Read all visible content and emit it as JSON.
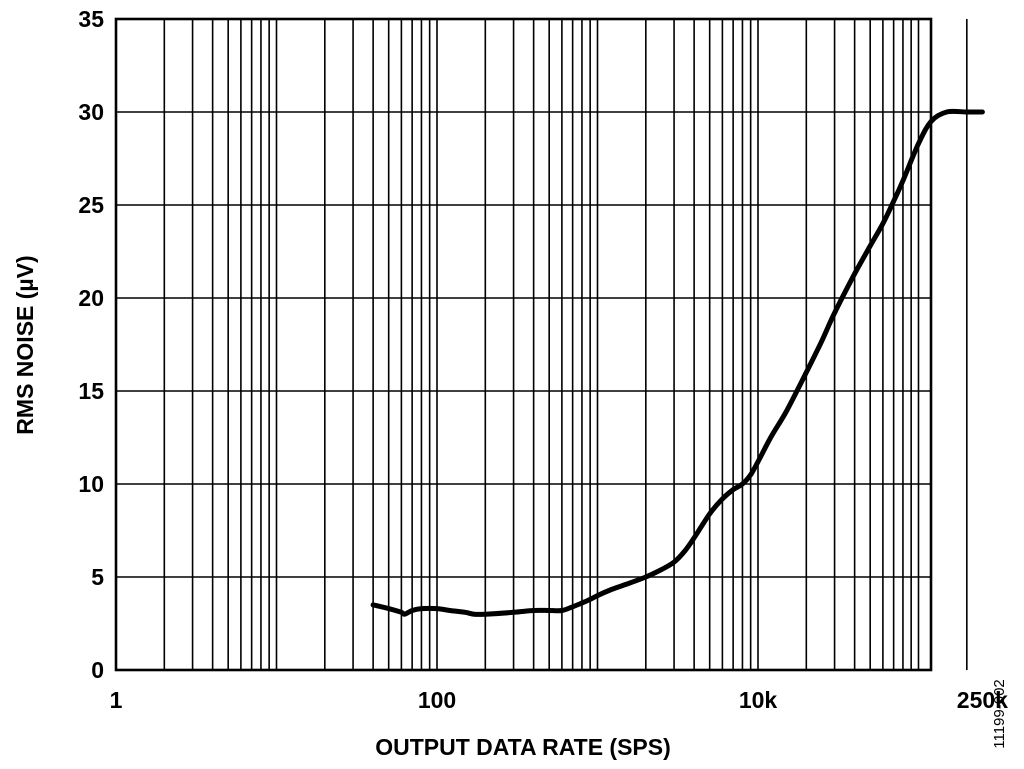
{
  "chart_data": {
    "type": "line",
    "title": "",
    "xlabel": "OUTPUT DATA RATE (SPS)",
    "ylabel": "RMS NOISE (µV)",
    "xscale": "log",
    "xlim": [
      1,
      250000
    ],
    "ylim": [
      0,
      35
    ],
    "grid": true,
    "x_ticks": [
      {
        "value": 1,
        "label": "1"
      },
      {
        "value": 100,
        "label": "100"
      },
      {
        "value": 10000,
        "label": "10k"
      },
      {
        "value": 250000,
        "label": "250k"
      }
    ],
    "y_ticks": [
      {
        "value": 0,
        "label": "0"
      },
      {
        "value": 5,
        "label": "5"
      },
      {
        "value": 10,
        "label": "10"
      },
      {
        "value": 15,
        "label": "15"
      },
      {
        "value": 20,
        "label": "20"
      },
      {
        "value": 25,
        "label": "25"
      },
      {
        "value": 30,
        "label": "30"
      },
      {
        "value": 35,
        "label": "35"
      }
    ],
    "series": [
      {
        "x": [
          40,
          50,
          60,
          63,
          70,
          80,
          100,
          120,
          150,
          170,
          200,
          300,
          400,
          500,
          600,
          700,
          800,
          900,
          1000,
          1200,
          1500,
          2000,
          2500,
          3000,
          3500,
          4000,
          5000,
          6000,
          7000,
          8000,
          9000,
          10000,
          12000,
          15000,
          20000,
          25000,
          30000,
          40000,
          50000,
          60000,
          70000,
          80000,
          100000,
          120000,
          150000,
          200000,
          250000
        ],
        "y": [
          3.5,
          3.3,
          3.1,
          3.0,
          3.2,
          3.3,
          3.3,
          3.2,
          3.1,
          3.0,
          3.0,
          3.1,
          3.2,
          3.2,
          3.2,
          3.4,
          3.6,
          3.8,
          4.0,
          4.3,
          4.6,
          5.0,
          5.4,
          5.8,
          6.4,
          7.1,
          8.4,
          9.2,
          9.7,
          10.0,
          10.5,
          11.2,
          12.5,
          13.9,
          16.0,
          17.7,
          19.2,
          21.3,
          22.8,
          24.0,
          25.2,
          26.3,
          28.3,
          29.5,
          30.0,
          30.0,
          30.0
        ]
      }
    ]
  },
  "figure_id": "11199-002"
}
